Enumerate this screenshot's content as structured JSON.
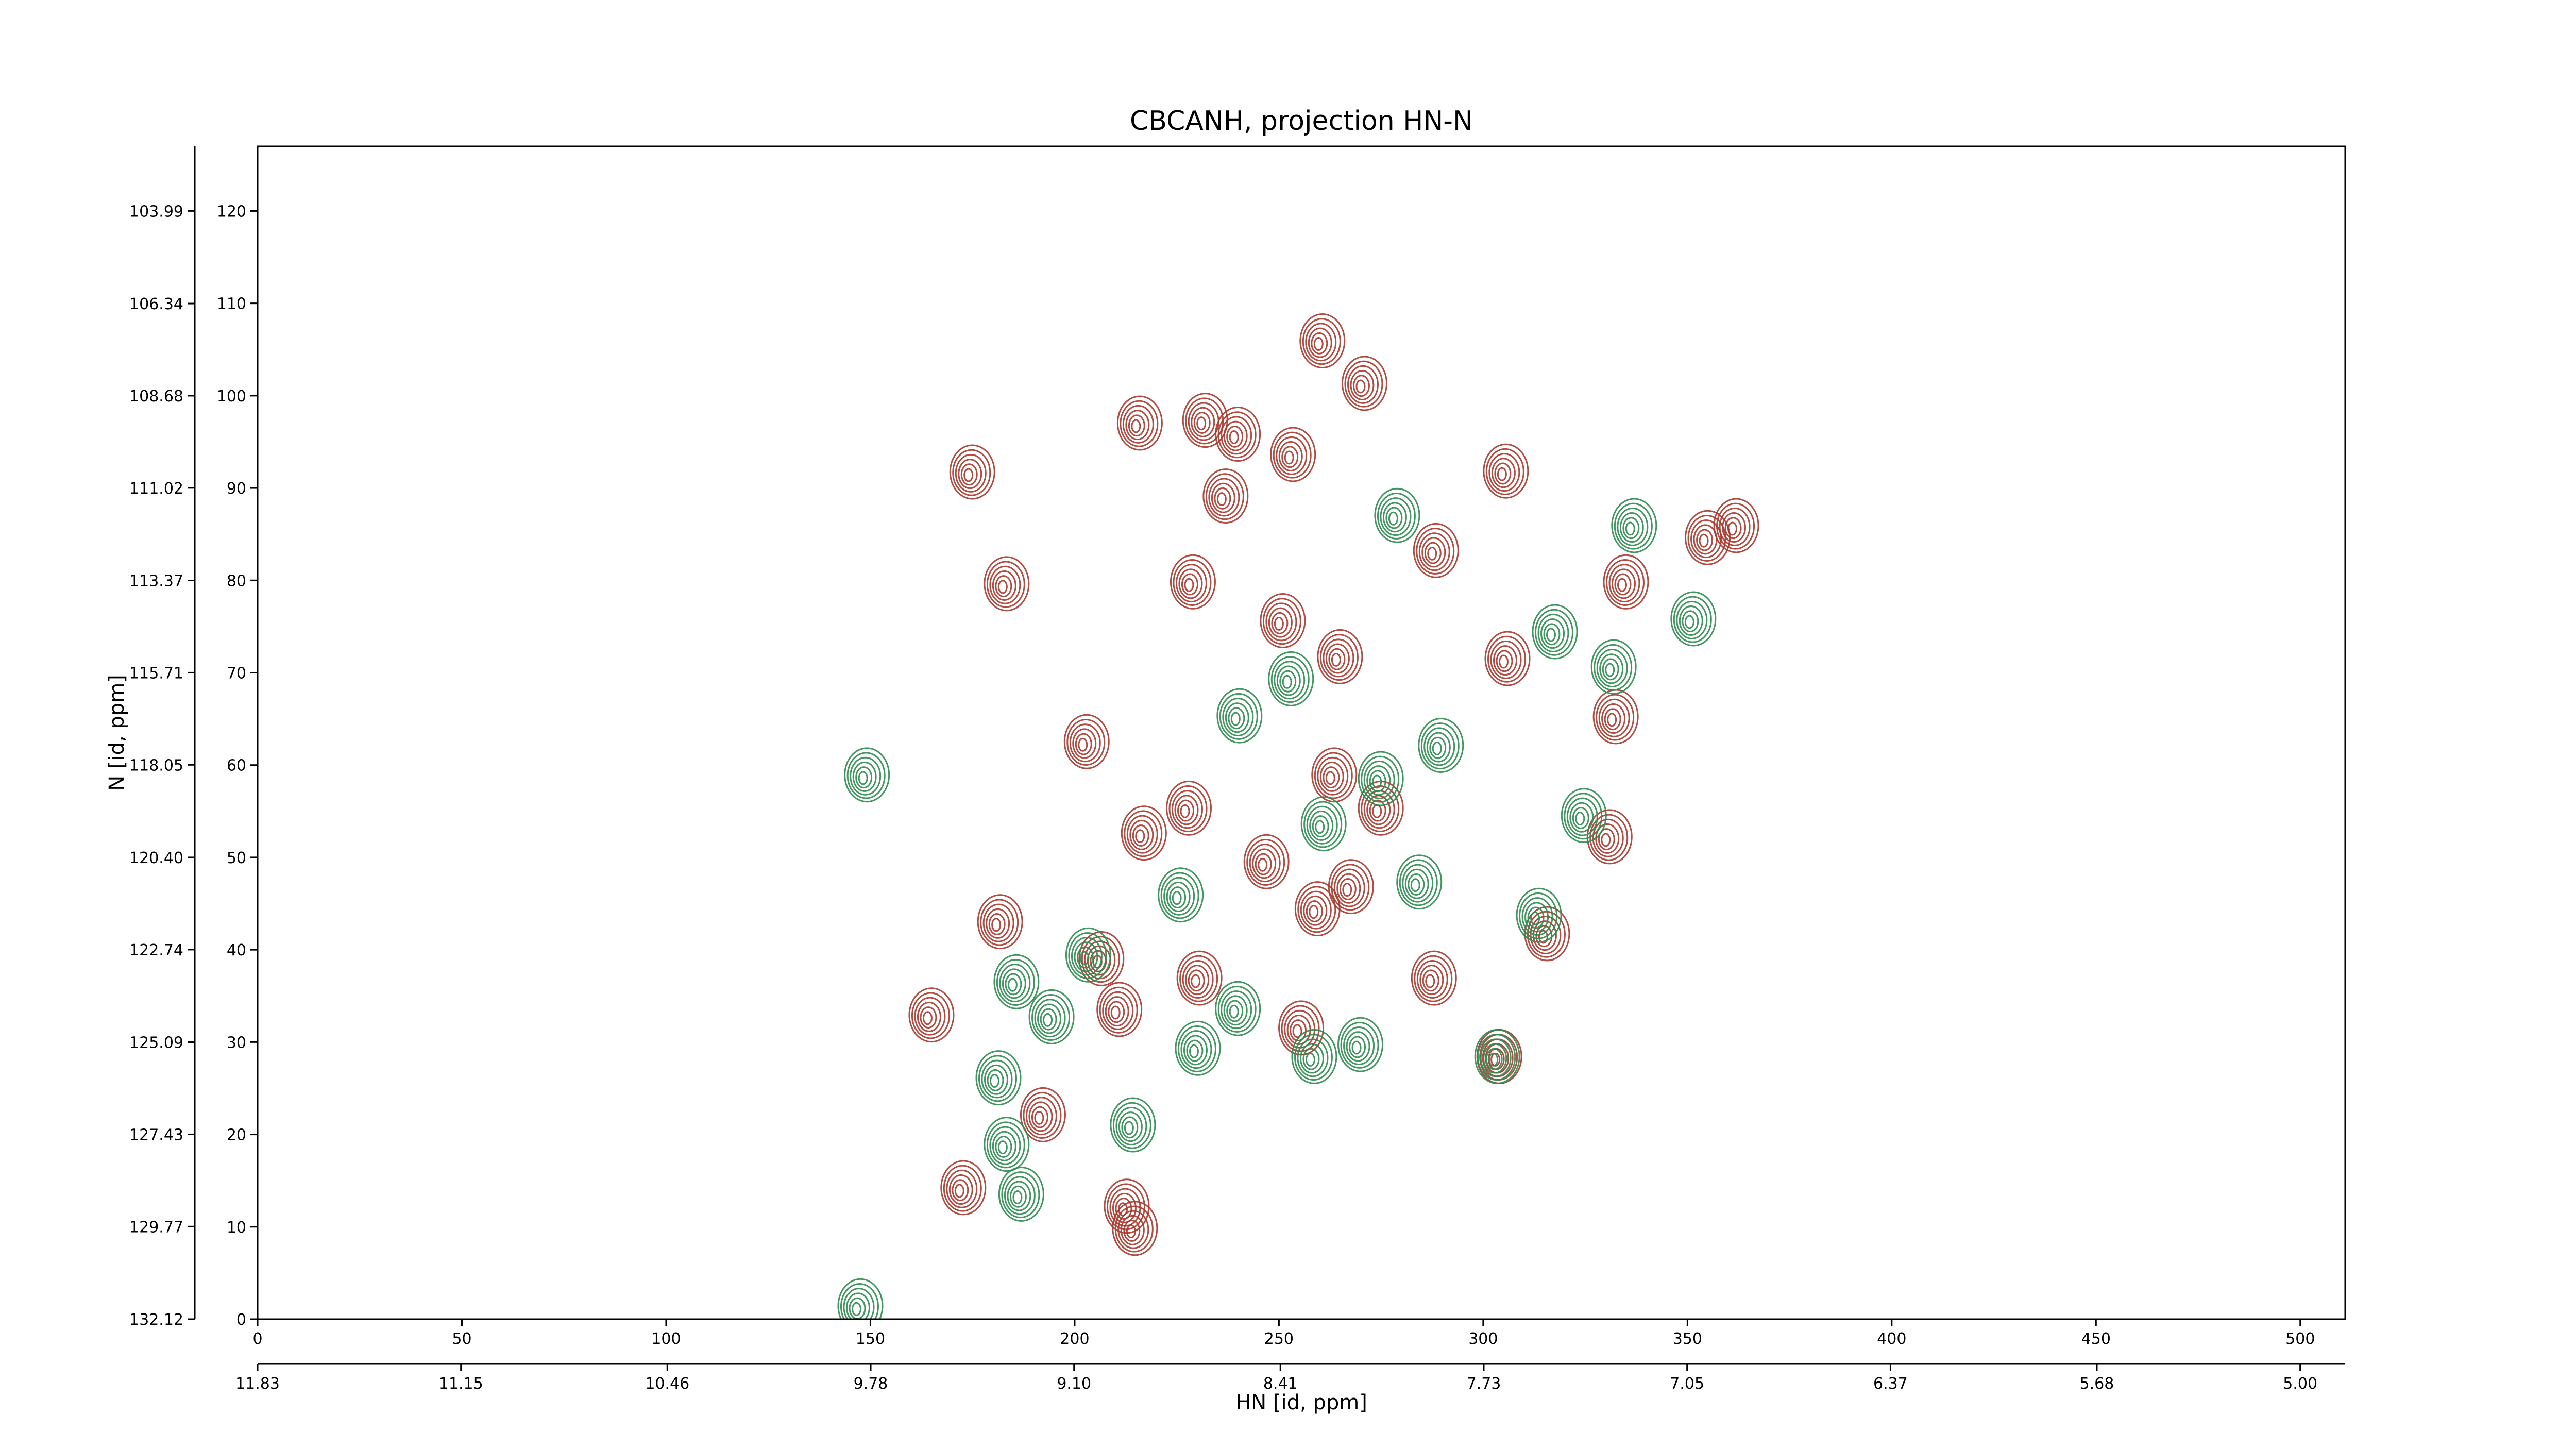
{
  "chart_data": {
    "type": "contour",
    "title": "CBCANH, projection HN-N",
    "xlabel": "HN [id, ppm]",
    "ylabel": "N [id, ppm]",
    "xlim": [
      0,
      511
    ],
    "xticks": [
      0,
      50,
      100,
      150,
      200,
      250,
      300,
      350,
      400,
      450,
      500
    ],
    "x2lim": [
      11.83,
      4.8496
    ],
    "x2ticks": [
      11.83,
      11.15,
      10.46,
      9.78,
      {
        "value": 9.1,
        "label": "9.10"
      },
      8.41,
      7.73,
      7.05,
      6.37,
      5.68,
      {
        "value": 5.0,
        "label": "5.00"
      }
    ],
    "ylim": [
      0,
      127
    ],
    "yticks": [
      0,
      10,
      20,
      30,
      40,
      50,
      60,
      70,
      80,
      90,
      100,
      110,
      120
    ],
    "y2lim": [
      132.12,
      102.35
    ],
    "y2ticks": [
      103.99,
      106.34,
      108.68,
      111.02,
      113.37,
      115.71,
      118.05,
      {
        "value": 120.4,
        "label": "120.40"
      },
      122.74,
      125.09,
      127.43,
      129.77,
      132.12
    ],
    "series": [
      {
        "color": "#a8382e",
        "x": [
          259.7,
          270,
          215,
          231,
          239,
          252.5,
          236,
          174,
          304.6,
          361,
          354,
          287.5,
          228,
          182.4,
          334,
          250,
          264,
          305,
          331.5,
          202,
          262.6,
          274,
          330,
          216,
          227,
          246,
          258.5,
          180.8,
          314.7,
          205.6,
          229.6,
          164,
          210,
          287,
          254.5,
          191.3,
          171.8,
          211.8,
          213.8,
          303,
          266.7
        ],
        "values": [
          105.6,
          101,
          96.7,
          97,
          95.5,
          93.3,
          88.8,
          91.4,
          91.5,
          85.6,
          84.3,
          82.9,
          79.5,
          79.3,
          79.5,
          75.3,
          71.4,
          71.2,
          64.9,
          62.2,
          58.6,
          55,
          51.9,
          52.3,
          55,
          49.2,
          44.1,
          42.7,
          41.4,
          38.7,
          36.6,
          32.6,
          33.2,
          36.6,
          31.2,
          21.8,
          13.9,
          11.9,
          9.5,
          28.1,
          46.5
        ]
      },
      {
        "color": "#2e8b4f",
        "x": [
          148.2,
          278,
          336,
          316.6,
          350.5,
          331,
          252,
          239.4,
          260,
          274,
          288.7,
          323.7,
          225,
          283.4,
          184.8,
          193.4,
          239,
          229.2,
          269,
          257.7,
          213.3,
          182.4,
          186,
          146.6,
          180.4,
          202.4,
          312.7,
          302.5
        ],
        "values": [
          58.6,
          86.7,
          85.6,
          74.1,
          75.5,
          70.3,
          69,
          65,
          53.3,
          58.2,
          61.8,
          54.2,
          45.6,
          47,
          36.2,
          32.4,
          33.3,
          29,
          29.4,
          28.1,
          20.7,
          18.6,
          13.2,
          1.1,
          25.8,
          39.1,
          43.4,
          28.1
        ]
      }
    ]
  }
}
